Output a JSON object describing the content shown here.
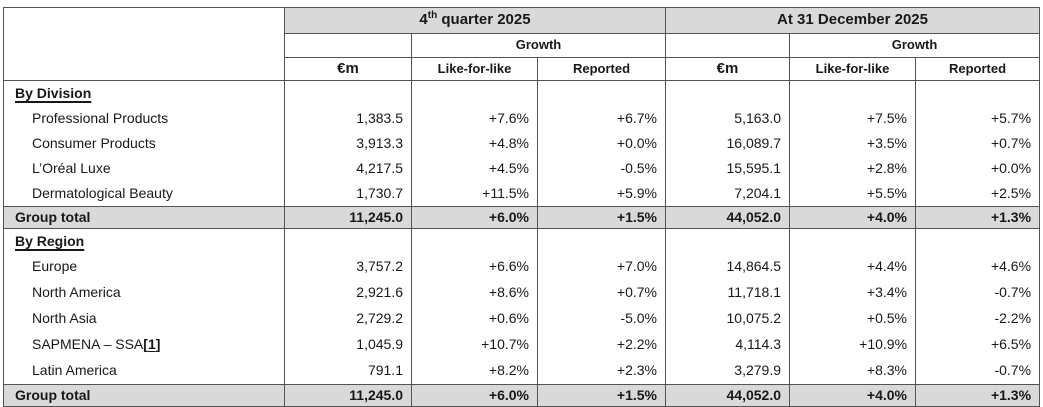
{
  "colors": {
    "header_band_bg": "#d9d9d9",
    "total_row_bg": "#d9d9d9",
    "border": "#545454",
    "text": "#181818"
  },
  "header": {
    "q4_num": "4",
    "q4_sup": "th",
    "q4_rest": " quarter 2025",
    "dec_title": "At 31 December 2025",
    "growth": "Growth",
    "eur": "€m",
    "like_for_like": "Like-for-like",
    "reported": "Reported"
  },
  "sections": {
    "division": "By Division",
    "region": "By Region"
  },
  "rows": {
    "division": [
      {
        "label": "Professional Products",
        "q4_m": "1,383.5",
        "q4_lfl": "+7.6%",
        "q4_rep": "+6.7%",
        "dec_m": "5,163.0",
        "dec_lfl": "+7.5%",
        "dec_rep": "+5.7%"
      },
      {
        "label": "Consumer Products",
        "q4_m": "3,913.3",
        "q4_lfl": "+4.8%",
        "q4_rep": "+0.0%",
        "dec_m": "16,089.7",
        "dec_lfl": "+3.5%",
        "dec_rep": "+0.7%"
      },
      {
        "label": "L’Oréal Luxe",
        "q4_m": "4,217.5",
        "q4_lfl": "+4.5%",
        "q4_rep": "-0.5%",
        "dec_m": "15,595.1",
        "dec_lfl": "+2.8%",
        "dec_rep": "+0.0%"
      },
      {
        "label": "Dermatological Beauty",
        "q4_m": "1,730.7",
        "q4_lfl": "+11.5%",
        "q4_rep": "+5.9%",
        "dec_m": "7,204.1",
        "dec_lfl": "+5.5%",
        "dec_rep": "+2.5%"
      }
    ],
    "region": [
      {
        "label": "Europe",
        "q4_m": "3,757.2",
        "q4_lfl": "+6.6%",
        "q4_rep": "+7.0%",
        "dec_m": "14,864.5",
        "dec_lfl": "+4.4%",
        "dec_rep": "+4.6%"
      },
      {
        "label": "North America",
        "q4_m": "2,921.6",
        "q4_lfl": "+8.6%",
        "q4_rep": "+0.7%",
        "dec_m": "11,718.1",
        "dec_lfl": "+3.4%",
        "dec_rep": "-0.7%"
      },
      {
        "label": "North Asia",
        "q4_m": "2,729.2",
        "q4_lfl": "+0.6%",
        "q4_rep": "-5.0%",
        "dec_m": "10,075.2",
        "dec_lfl": "+0.5%",
        "dec_rep": "-2.2%"
      },
      {
        "label": "SAPMENA – SSA",
        "q4_m": "1,045.9",
        "q4_lfl": "+10.7%",
        "q4_rep": "+2.2%",
        "dec_m": "4,114.3",
        "dec_lfl": "+10.9%",
        "dec_rep": "+6.5%"
      },
      {
        "label": "Latin America",
        "q4_m": "791.1",
        "q4_lfl": "+8.2%",
        "q4_rep": "+2.3%",
        "dec_m": "3,279.9",
        "dec_lfl": "+8.3%",
        "dec_rep": "-0.7%"
      }
    ],
    "group_total": {
      "label": "Group total",
      "q4_m": "11,245.0",
      "q4_lfl": "+6.0%",
      "q4_rep": "+1.5%",
      "dec_m": "44,052.0",
      "dec_lfl": "+4.0%",
      "dec_rep": "+1.3%"
    }
  },
  "footnote": {
    "open": "[",
    "num": "1",
    "close": "]"
  }
}
